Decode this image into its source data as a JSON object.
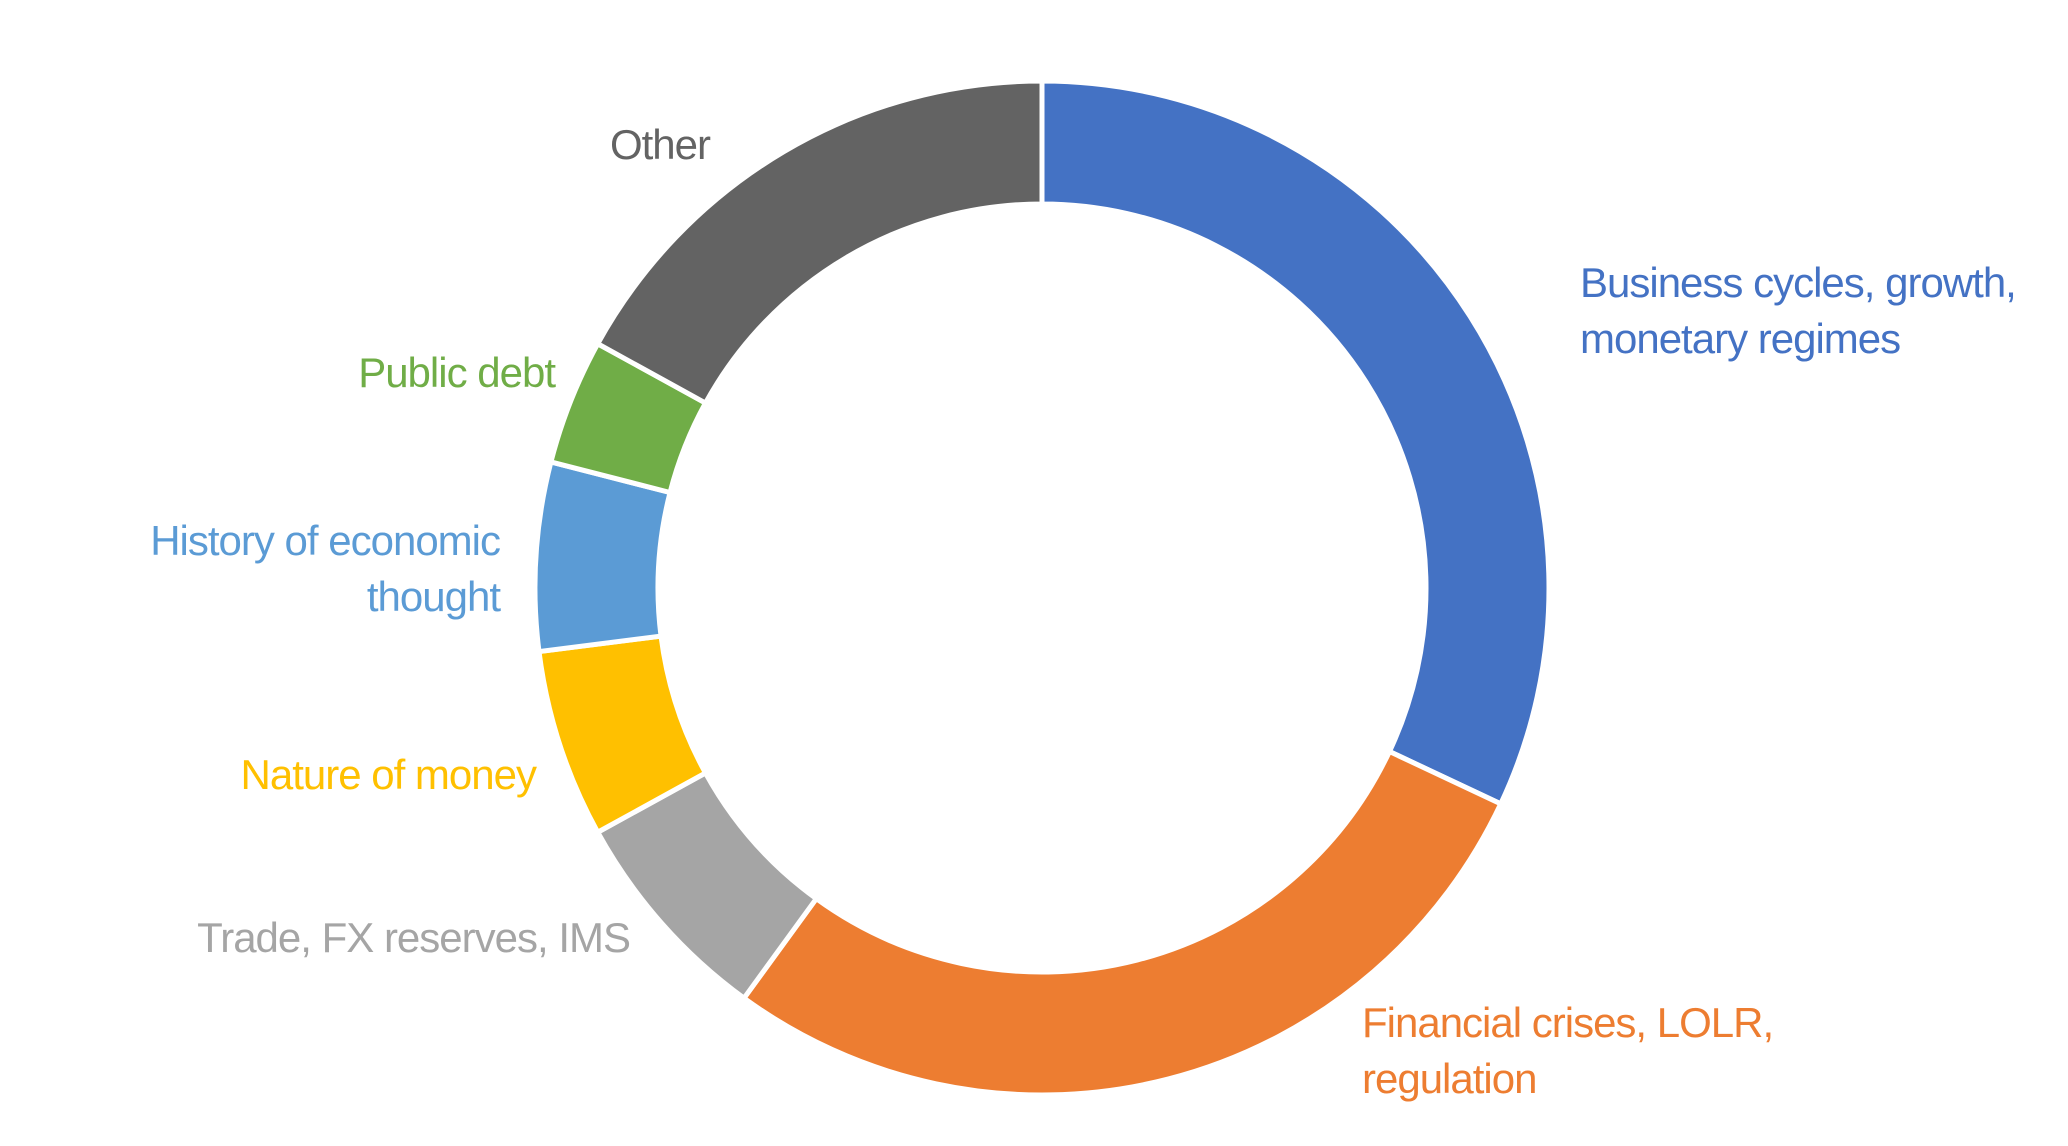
{
  "chart_data": {
    "type": "donut",
    "categories": [
      "Business cycles, growth, monetary regimes",
      "Financial crises, LOLR, regulation",
      "Trade, FX reserves, IMS",
      "Nature of money",
      "History of economic thought",
      "Public debt",
      "Other"
    ],
    "series": [
      {
        "values": [
          32,
          28,
          7,
          6,
          6,
          4,
          17
        ],
        "colors": [
          "#4472c4",
          "#ed7d31",
          "#a5a5a5",
          "#ffc000",
          "#5b9bd5",
          "#70ad47",
          "#636363"
        ]
      }
    ]
  }
}
